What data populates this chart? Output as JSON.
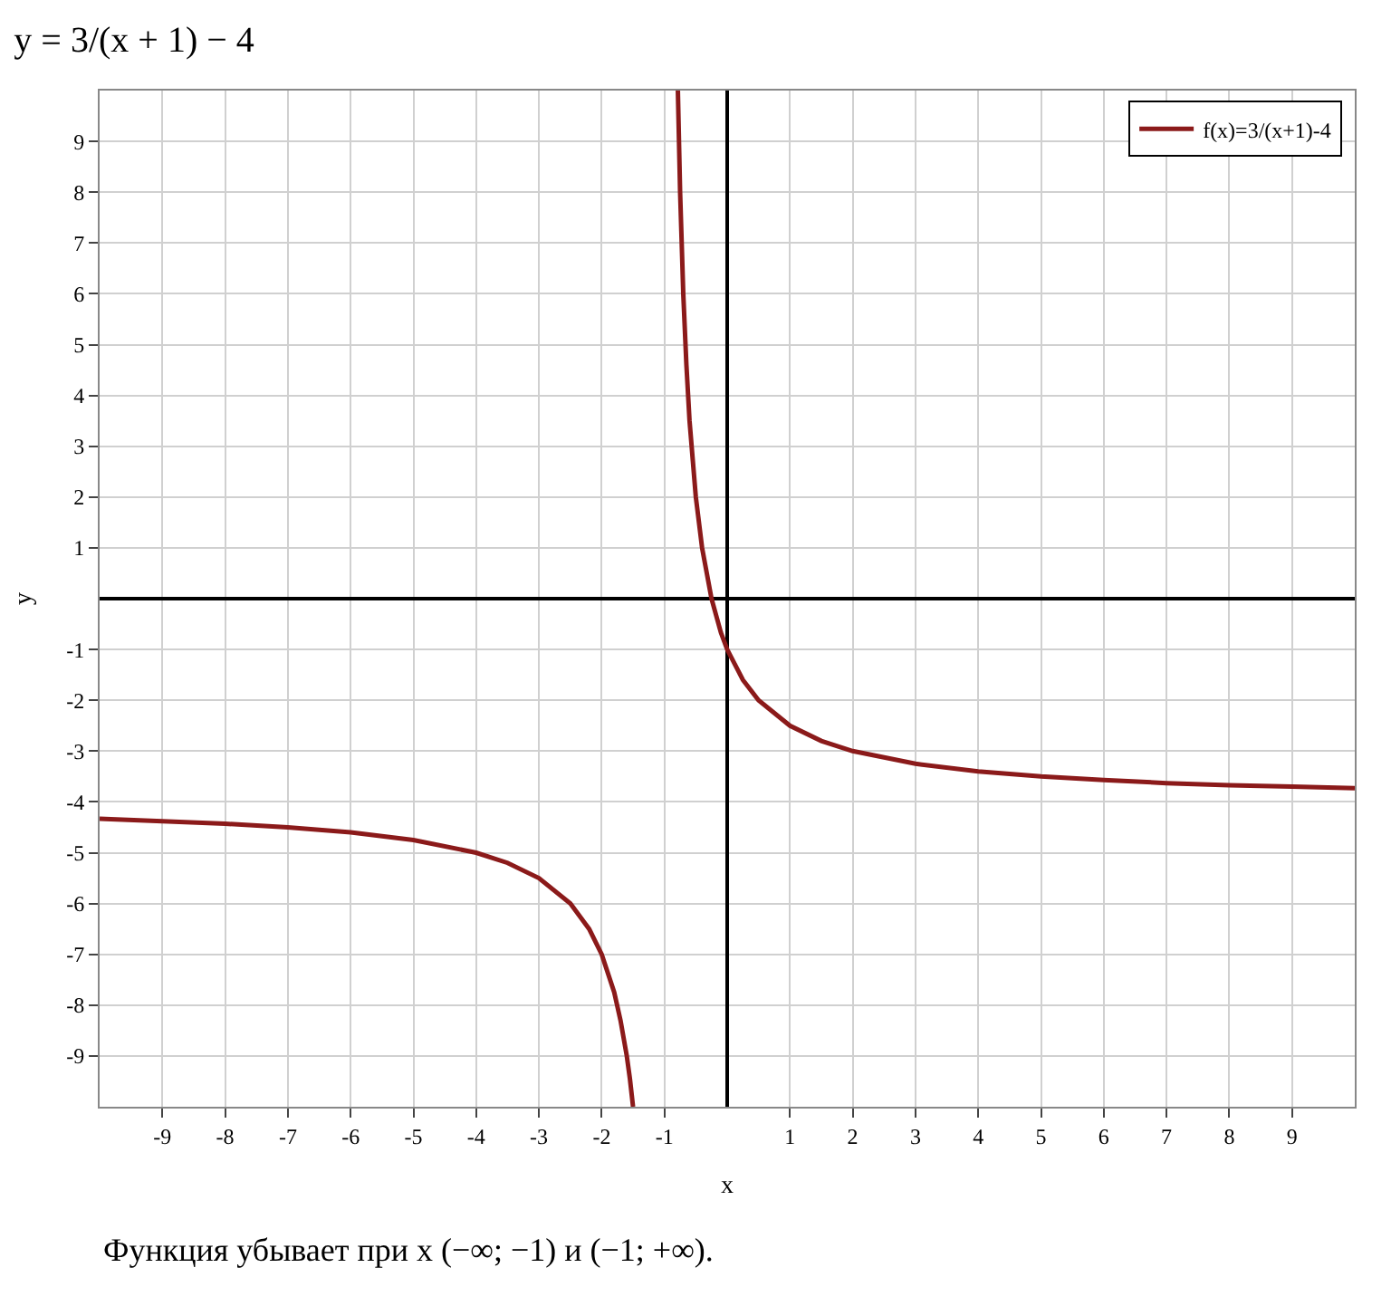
{
  "chart_data": {
    "type": "line",
    "title": "y = 3/(x + 1) − 4",
    "xlabel": "x",
    "ylabel": "y",
    "x": [
      -10,
      -9,
      -8,
      -7,
      -6,
      -5,
      -4,
      -3.5,
      -3,
      -2.5,
      -2.2,
      -2,
      -1.8,
      -1.7,
      -1.6,
      -1.55,
      -1.5,
      -1,
      -0.786,
      -0.75,
      -0.7,
      -0.65,
      -0.6,
      -0.5,
      -0.4,
      -0.25,
      -0.1,
      0,
      0.25,
      0.5,
      1,
      1.5,
      2,
      3,
      4,
      5,
      6,
      7,
      8,
      9,
      10
    ],
    "series": [
      {
        "name": "f(x)=3/(x+1)-4",
        "color": "#8b1a1a",
        "values": [
          -4.33,
          -4.38,
          -4.43,
          -4.5,
          -4.6,
          -4.75,
          -5,
          -5.2,
          -5.5,
          -6,
          -6.5,
          -7,
          -7.75,
          -8.3,
          -9,
          -9.45,
          -10,
          null,
          10,
          8,
          6,
          4.6,
          3.5,
          2,
          1,
          0,
          -0.67,
          -1,
          -1.6,
          -2,
          -2.5,
          -2.8,
          -3,
          -3.25,
          -3.4,
          -3.5,
          -3.57,
          -3.63,
          -3.67,
          -3.7,
          -3.73
        ]
      }
    ],
    "xlim": [
      -10,
      10
    ],
    "ylim": [
      -10,
      10
    ],
    "xticks": [
      -9,
      -8,
      -7,
      -6,
      -5,
      -4,
      -3,
      -2,
      -1,
      1,
      2,
      3,
      4,
      5,
      6,
      7,
      8,
      9
    ],
    "yticks": [
      -9,
      -8,
      -7,
      -6,
      -5,
      -4,
      -3,
      -2,
      -1,
      1,
      2,
      3,
      4,
      5,
      6,
      7,
      8,
      9
    ],
    "grid": true,
    "legend": "top right",
    "marker": "none",
    "line_style": "solid",
    "annotations": [
      "Функция убывает при x (−∞; −1) и (−1; +∞)."
    ]
  }
}
